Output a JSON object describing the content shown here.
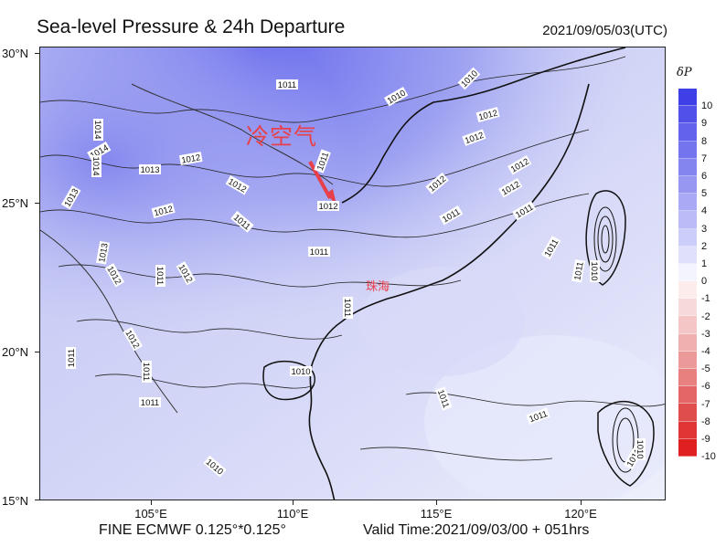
{
  "title": "Sea-level Pressure & 24h Departure",
  "datetime": "2021/09/05/03(UTC)",
  "footer": {
    "model": "FINE ECMWF 0.125°*0.125°",
    "valid_time": "Valid Time:2021/09/03/00 + 051hrs"
  },
  "y_axis_labels": [
    "30°N",
    "25°N",
    "20°N",
    "15°N"
  ],
  "x_axis_labels": [
    "105°E",
    "110°E",
    "115°E",
    "120°E"
  ],
  "legend": {
    "title": "δP",
    "levels": [
      "10",
      "9",
      "8",
      "7",
      "6",
      "5",
      "4",
      "3",
      "2",
      "1",
      "0",
      "-1",
      "-2",
      "-3",
      "-4",
      "-5",
      "-6",
      "-7",
      "-8",
      "-9",
      "-10"
    ],
    "colors": [
      "#3f3fe8",
      "#5151ea",
      "#6262ec",
      "#7474ee",
      "#8585f0",
      "#9797f2",
      "#a9a9f5",
      "#bbbbf8",
      "#cdcdfa",
      "#e0e0fc",
      "#f4f4fe",
      "#fcecec",
      "#f8d9d9",
      "#f4c6c6",
      "#f0b0b0",
      "#ec9999",
      "#e88080",
      "#e46666",
      "#e04d4d",
      "#e03535",
      "#e02020"
    ]
  },
  "annotations": {
    "cold_air": "冷空气",
    "city": "珠海"
  },
  "isobar_labels": [
    "1011",
    "1010",
    "1010",
    "1012",
    "1014",
    "1014",
    "1014",
    "1013",
    "1013",
    "1012",
    "1012",
    "1012",
    "1011",
    "1011",
    "1012",
    "1012",
    "1012",
    "1011",
    "1013",
    "1012",
    "1012",
    "1011",
    "1012",
    "1012",
    "1011",
    "1011",
    "1011",
    "1011",
    "1010",
    "1012",
    "1011",
    "1011",
    "1011",
    "1011",
    "1011",
    "1010",
    "1011",
    "1010",
    "1011",
    "1010"
  ]
}
